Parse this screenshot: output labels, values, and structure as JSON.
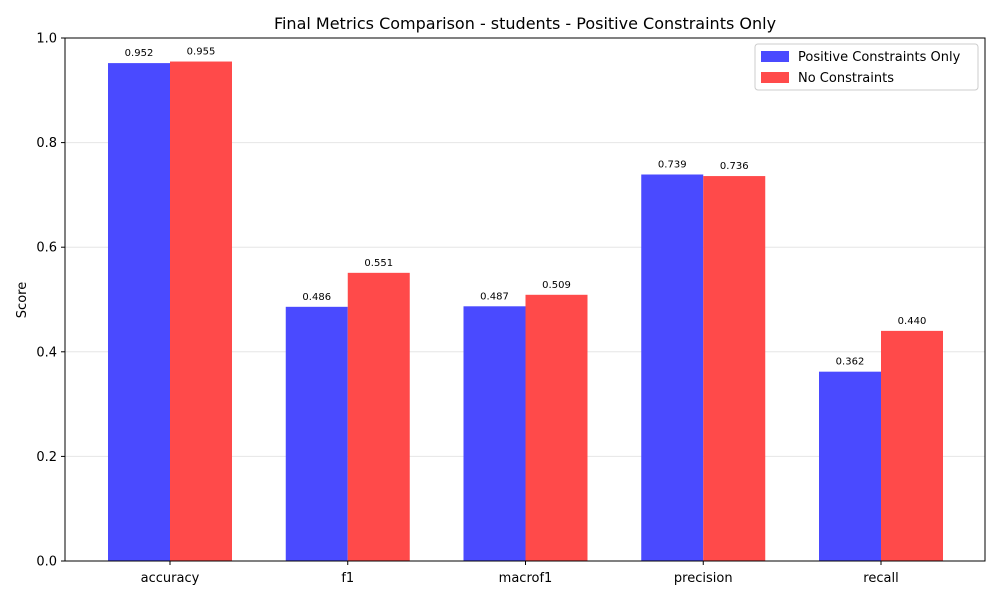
{
  "chart_data": {
    "type": "bar",
    "title": "Final Metrics Comparison - students - Positive Constraints Only",
    "xlabel": "",
    "ylabel": "Score",
    "categories": [
      "accuracy",
      "f1",
      "macrof1",
      "precision",
      "recall"
    ],
    "series": [
      {
        "name": "Positive Constraints Only",
        "color": "#4a4aff",
        "values": [
          0.952,
          0.486,
          0.487,
          0.739,
          0.362
        ],
        "labels": [
          "0.952",
          "0.486",
          "0.487",
          "0.739",
          "0.362"
        ]
      },
      {
        "name": "No Constraints",
        "color": "#ff4a4a",
        "values": [
          0.955,
          0.551,
          0.509,
          0.736,
          0.44
        ],
        "labels": [
          "0.955",
          "0.551",
          "0.509",
          "0.736",
          "0.440"
        ]
      }
    ],
    "ylim": [
      0,
      1.0
    ],
    "yticks": [
      "0.0",
      "0.2",
      "0.4",
      "0.6",
      "0.8",
      "1.0"
    ],
    "ytick_values": [
      0,
      0.2,
      0.4,
      0.6,
      0.8,
      1.0
    ],
    "grid": "y",
    "legend_position": "top-right"
  }
}
